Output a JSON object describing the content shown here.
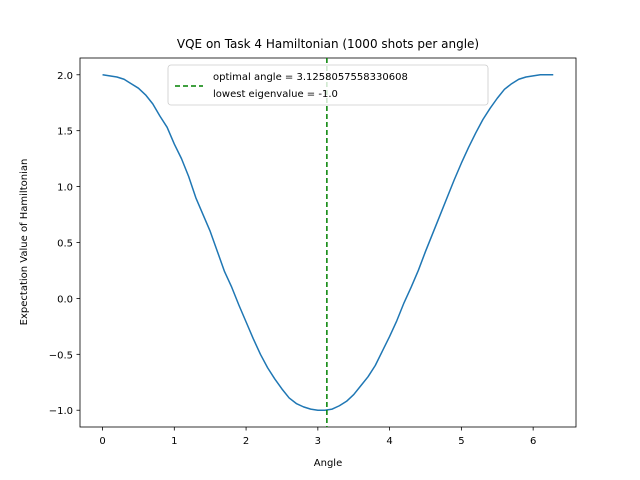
{
  "chart_data": {
    "type": "line",
    "title": "VQE on Task 4 Hamiltonian (1000 shots per angle)",
    "xlabel": "Angle",
    "ylabel": "Expectation Value of Hamiltonian",
    "xlim": [
      -0.314,
      6.597
    ],
    "ylim": [
      -1.15,
      2.15
    ],
    "xticks": [
      0,
      1,
      2,
      3,
      4,
      5,
      6
    ],
    "yticks": [
      -1.0,
      -0.5,
      0.0,
      0.5,
      1.0,
      1.5,
      2.0
    ],
    "xtick_labels": [
      "0",
      "1",
      "2",
      "3",
      "4",
      "5",
      "6"
    ],
    "ytick_labels": [
      "−1.0",
      "−0.5",
      "0.0",
      "0.5",
      "1.0",
      "1.5",
      "2.0"
    ],
    "grid": false,
    "legend_position": "top-center",
    "series": [
      {
        "color": "#1f77b4",
        "x": [
          0.0,
          0.1,
          0.2,
          0.3,
          0.4,
          0.5,
          0.6,
          0.7,
          0.8,
          0.9,
          1.0,
          1.1,
          1.2,
          1.3,
          1.4,
          1.5,
          1.6,
          1.7,
          1.8,
          1.9,
          2.0,
          2.1,
          2.2,
          2.3,
          2.4,
          2.5,
          2.6,
          2.7,
          2.8,
          2.9,
          3.0,
          3.1,
          3.2,
          3.3,
          3.4,
          3.5,
          3.6,
          3.7,
          3.8,
          3.9,
          4.0,
          4.1,
          4.2,
          4.3,
          4.4,
          4.5,
          4.6,
          4.7,
          4.8,
          4.9,
          5.0,
          5.1,
          5.2,
          5.3,
          5.4,
          5.5,
          5.6,
          5.7,
          5.8,
          5.9,
          6.0,
          6.1,
          6.2,
          6.28
        ],
        "y": [
          2.0,
          1.99,
          1.98,
          1.96,
          1.92,
          1.88,
          1.82,
          1.74,
          1.63,
          1.53,
          1.38,
          1.25,
          1.09,
          0.9,
          0.75,
          0.6,
          0.42,
          0.24,
          0.1,
          -0.06,
          -0.21,
          -0.36,
          -0.5,
          -0.62,
          -0.72,
          -0.81,
          -0.89,
          -0.94,
          -0.97,
          -0.99,
          -1.0,
          -1.0,
          -0.99,
          -0.96,
          -0.92,
          -0.86,
          -0.78,
          -0.7,
          -0.6,
          -0.47,
          -0.34,
          -0.2,
          -0.04,
          0.1,
          0.25,
          0.42,
          0.58,
          0.74,
          0.9,
          1.06,
          1.21,
          1.35,
          1.48,
          1.6,
          1.7,
          1.79,
          1.87,
          1.92,
          1.96,
          1.98,
          1.99,
          2.0,
          2.0,
          2.0
        ]
      }
    ],
    "vline": {
      "x": 3.1258057558330608,
      "color": "#008000",
      "style": "dashed",
      "label": "optimal angle = 3.1258057558330608"
    },
    "legend": [
      {
        "text": "optimal angle = 3.1258057558330608",
        "marker": "dashed-line",
        "color": "#008000"
      },
      {
        "text": "lowest eigenvalue = -1.0",
        "marker": "none"
      }
    ]
  }
}
